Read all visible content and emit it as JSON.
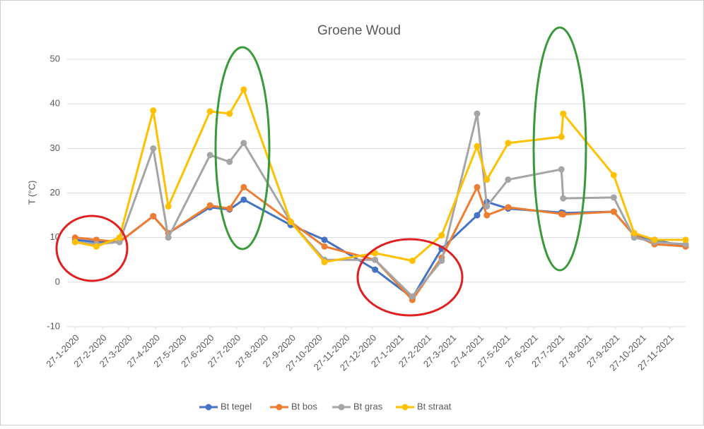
{
  "chart_data": {
    "type": "line",
    "title": "Groene Woud",
    "y_label": "T (°C)",
    "x": [
      "2020-01-27",
      "2020-02-20",
      "2020-03-17",
      "2020-04-24",
      "2020-05-11",
      "2020-06-27",
      "2020-07-19",
      "2020-08-04",
      "2020-09-26",
      "2020-11-03",
      "2020-12-30",
      "2021-02-10",
      "2021-03-15",
      "2021-04-24",
      "2021-05-05",
      "2021-05-29",
      "2021-07-28",
      "2021-07-30",
      "2021-09-25",
      "2021-10-18",
      "2021-11-10",
      "2021-12-15"
    ],
    "series": [
      {
        "name": "Bt tegel",
        "color": "#4472c4",
        "values": [
          9.5,
          9,
          9,
          14.8,
          11,
          16.8,
          16.3,
          18.5,
          12.8,
          9.5,
          2.8,
          -3.5,
          7.5,
          15,
          18,
          16.5,
          15.6,
          15.5,
          15.8,
          10.5,
          9.5,
          8
        ]
      },
      {
        "name": "Bt bos",
        "color": "#ed7d31",
        "values": [
          10,
          9.5,
          9,
          14.8,
          11,
          17.2,
          16.5,
          21.3,
          13.5,
          8,
          5,
          -4,
          5.5,
          21.3,
          15,
          16.8,
          15.3,
          15.2,
          15.8,
          10.5,
          8.5,
          8
        ]
      },
      {
        "name": "Bt gras",
        "color": "#a5a5a5",
        "values": [
          9,
          8.5,
          9,
          30,
          10,
          28.5,
          27,
          31.2,
          13.5,
          5,
          5,
          -3.2,
          4.8,
          37.8,
          17,
          23,
          25.3,
          18.8,
          19,
          10,
          9,
          8.5
        ]
      },
      {
        "name": "Bt straat",
        "color": "#ffc000",
        "values": [
          9,
          8,
          10,
          38.5,
          17,
          38.3,
          37.8,
          43.2,
          13.5,
          4.5,
          6.5,
          4.8,
          10.5,
          30.5,
          23,
          31.2,
          32.6,
          37.8,
          24,
          11,
          9.5,
          9.5
        ]
      }
    ],
    "xlim": [
      "2020-01-18",
      "2021-12-15"
    ],
    "xticks": [
      {
        "value": "2020-01-27",
        "label": "27-1-2020"
      },
      {
        "value": "2020-02-27",
        "label": "27-2-2020"
      },
      {
        "value": "2020-03-27",
        "label": "27-3-2020"
      },
      {
        "value": "2020-04-27",
        "label": "27-4-2020"
      },
      {
        "value": "2020-05-27",
        "label": "27-5-2020"
      },
      {
        "value": "2020-06-27",
        "label": "27-6-2020"
      },
      {
        "value": "2020-07-27",
        "label": "27-7-2020"
      },
      {
        "value": "2020-08-27",
        "label": "27-8-2020"
      },
      {
        "value": "2020-09-27",
        "label": "27-9-2020"
      },
      {
        "value": "2020-10-27",
        "label": "27-10-2020"
      },
      {
        "value": "2020-11-27",
        "label": "27-11-2020"
      },
      {
        "value": "2020-12-27",
        "label": "27-12-2020"
      },
      {
        "value": "2021-01-27",
        "label": "27-1-2021"
      },
      {
        "value": "2021-02-27",
        "label": "27-2-2021"
      },
      {
        "value": "2021-03-27",
        "label": "27-3-2021"
      },
      {
        "value": "2021-04-27",
        "label": "27-4-2021"
      },
      {
        "value": "2021-05-27",
        "label": "27-5-2021"
      },
      {
        "value": "2021-06-27",
        "label": "27-6-2021"
      },
      {
        "value": "2021-07-27",
        "label": "27-7-2021"
      },
      {
        "value": "2021-08-27",
        "label": "27-8-2021"
      },
      {
        "value": "2021-09-27",
        "label": "27-9-2021"
      },
      {
        "value": "2021-10-27",
        "label": "27-10-2021"
      },
      {
        "value": "2021-11-27",
        "label": "27-11-2021"
      }
    ],
    "ylim": [
      -10,
      50
    ],
    "yticks": [
      -10,
      0,
      10,
      20,
      30,
      40,
      50
    ],
    "grid": true,
    "legend": "bottom"
  }
}
